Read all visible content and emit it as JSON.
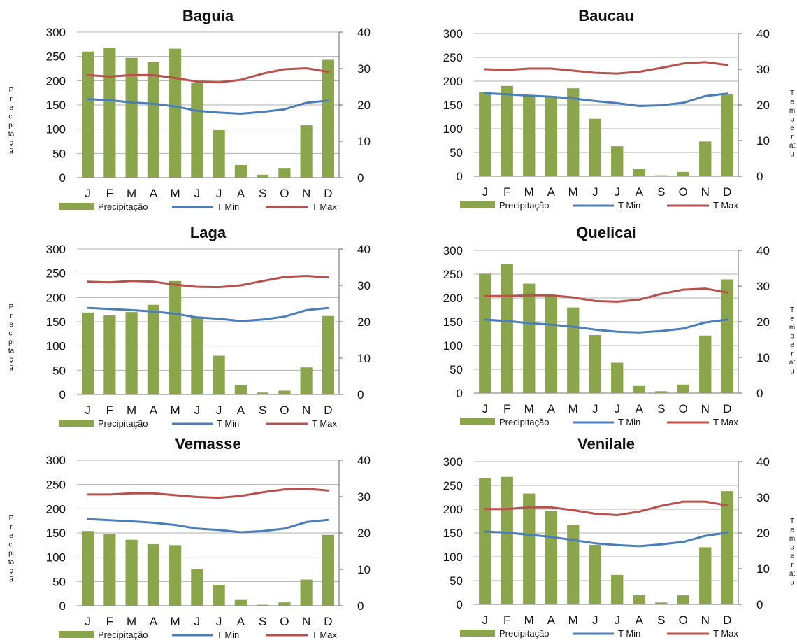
{
  "chart_data": [
    {
      "type": "bar",
      "title": "Baguia",
      "categories": [
        "J",
        "F",
        "M",
        "A",
        "M",
        "J",
        "J",
        "A",
        "S",
        "O",
        "N",
        "D"
      ],
      "ylim": [
        0,
        300
      ],
      "y2lim": [
        0,
        40
      ],
      "yticks": [
        "0",
        "50",
        "100",
        "150",
        "200",
        "250",
        "300"
      ],
      "y2ticks": [
        "0",
        "10",
        "20",
        "30",
        "40"
      ],
      "ylabel": "Precipitaçã",
      "y2label": "",
      "legend": [
        "Precipitação",
        "T Min",
        "T Max"
      ],
      "series": [
        {
          "name": "Precipitação",
          "type": "bar",
          "axis": "left",
          "values": [
            260,
            268,
            247,
            239,
            266,
            195,
            98,
            26,
            6,
            20,
            108,
            243
          ]
        },
        {
          "name": "T Min",
          "type": "line",
          "axis": "right",
          "values": [
            21.6,
            21.3,
            20.7,
            20.3,
            19.6,
            18.4,
            17.9,
            17.6,
            18.1,
            18.8,
            20.6,
            21.2
          ]
        },
        {
          "name": "T Max",
          "type": "line",
          "axis": "right",
          "values": [
            28.2,
            27.8,
            28.2,
            28.2,
            27.4,
            26.4,
            26.2,
            26.9,
            28.6,
            29.8,
            30.1,
            29.1
          ]
        }
      ]
    },
    {
      "type": "bar",
      "title": "Baucau",
      "categories": [
        "J",
        "F",
        "M",
        "A",
        "M",
        "J",
        "J",
        "A",
        "S",
        "O",
        "N",
        "D"
      ],
      "ylim": [
        0,
        300
      ],
      "y2lim": [
        0,
        40
      ],
      "yticks": [
        "0",
        "50",
        "100",
        "150",
        "200",
        "250",
        "300"
      ],
      "y2ticks": [
        "0",
        "10",
        "20",
        "30",
        "40"
      ],
      "ylabel": "",
      "y2label": "Temperatu",
      "legend": [
        "Precipitação",
        "T Min",
        "T Max"
      ],
      "series": [
        {
          "name": "Precipitação",
          "type": "bar",
          "axis": "left",
          "values": [
            178,
            190,
            170,
            168,
            185,
            121,
            63,
            16,
            2,
            9,
            73,
            173
          ]
        },
        {
          "name": "T Min",
          "type": "line",
          "axis": "right",
          "values": [
            23.3,
            23.0,
            22.6,
            22.3,
            21.8,
            21.1,
            20.5,
            19.7,
            19.9,
            20.6,
            22.5,
            23.2
          ]
        },
        {
          "name": "T Max",
          "type": "line",
          "axis": "right",
          "values": [
            30.0,
            29.8,
            30.2,
            30.2,
            29.6,
            29.0,
            28.8,
            29.3,
            30.4,
            31.6,
            32.0,
            31.2
          ]
        }
      ]
    },
    {
      "type": "bar",
      "title": "Laga",
      "categories": [
        "J",
        "F",
        "M",
        "A",
        "M",
        "J",
        "J",
        "A",
        "S",
        "O",
        "N",
        "D"
      ],
      "ylim": [
        0,
        300
      ],
      "y2lim": [
        0,
        40
      ],
      "yticks": [
        "0",
        "50",
        "100",
        "150",
        "200",
        "250",
        "300"
      ],
      "y2ticks": [
        "0",
        "10",
        "20",
        "30",
        "40"
      ],
      "ylabel": "Precipitaçã",
      "y2label": "",
      "legend": [
        "Precipitação",
        "T Min",
        "T Max"
      ],
      "series": [
        {
          "name": "Precipitação",
          "type": "bar",
          "axis": "left",
          "values": [
            169,
            163,
            170,
            185,
            234,
            160,
            80,
            19,
            4,
            8,
            56,
            162
          ]
        },
        {
          "name": "T Min",
          "type": "line",
          "axis": "right",
          "values": [
            23.8,
            23.5,
            23.2,
            22.8,
            22.2,
            21.2,
            20.8,
            20.2,
            20.6,
            21.4,
            23.2,
            23.8
          ]
        },
        {
          "name": "T Max",
          "type": "line",
          "axis": "right",
          "values": [
            31.0,
            30.8,
            31.2,
            31.0,
            30.2,
            29.6,
            29.5,
            30.0,
            31.2,
            32.3,
            32.6,
            32.2
          ]
        }
      ]
    },
    {
      "type": "bar",
      "title": "Quelicai",
      "categories": [
        "J",
        "F",
        "M",
        "A",
        "M",
        "J",
        "J",
        "A",
        "S",
        "O",
        "N",
        "D"
      ],
      "ylim": [
        0,
        300
      ],
      "y2lim": [
        0,
        40
      ],
      "yticks": [
        "0",
        "50",
        "100",
        "150",
        "200",
        "250",
        "300"
      ],
      "y2ticks": [
        "0",
        "10",
        "20",
        "30",
        "40"
      ],
      "ylabel": "",
      "y2label": "Temperatu",
      "legend": [
        "Precipitação",
        "T Min",
        "T Max"
      ],
      "series": [
        {
          "name": "Precipitação",
          "type": "bar",
          "axis": "left",
          "values": [
            251,
            271,
            230,
            205,
            180,
            122,
            64,
            15,
            4,
            18,
            121,
            239
          ]
        },
        {
          "name": "T Min",
          "type": "line",
          "axis": "right",
          "values": [
            20.6,
            20.2,
            19.6,
            19.2,
            18.6,
            17.8,
            17.2,
            17.0,
            17.4,
            18.1,
            19.8,
            20.6
          ]
        },
        {
          "name": "T Max",
          "type": "line",
          "axis": "right",
          "values": [
            27.2,
            27.2,
            27.4,
            27.4,
            26.8,
            25.8,
            25.6,
            26.2,
            27.8,
            29.0,
            29.3,
            28.2
          ]
        }
      ]
    },
    {
      "type": "bar",
      "title": "Vemasse",
      "categories": [
        "J",
        "F",
        "M",
        "A",
        "M",
        "J",
        "J",
        "A",
        "S",
        "O",
        "N",
        "D"
      ],
      "ylim": [
        0,
        300
      ],
      "y2lim": [
        0,
        40
      ],
      "yticks": [
        "0",
        "50",
        "100",
        "150",
        "200",
        "250",
        "300"
      ],
      "y2ticks": [
        "0",
        "10",
        "20",
        "30",
        "40"
      ],
      "ylabel": "Precipitaçã",
      "y2label": "",
      "legend": [
        "Precipitação",
        "T Min",
        "T Max"
      ],
      "series": [
        {
          "name": "Precipitação",
          "type": "bar",
          "axis": "left",
          "values": [
            154,
            148,
            136,
            127,
            125,
            75,
            43,
            12,
            2,
            7,
            54,
            146
          ]
        },
        {
          "name": "T Min",
          "type": "line",
          "axis": "right",
          "values": [
            23.8,
            23.5,
            23.2,
            22.8,
            22.2,
            21.2,
            20.8,
            20.2,
            20.5,
            21.2,
            23.0,
            23.6
          ]
        },
        {
          "name": "T Max",
          "type": "line",
          "axis": "right",
          "values": [
            30.6,
            30.6,
            30.9,
            30.9,
            30.4,
            29.9,
            29.7,
            30.2,
            31.2,
            32.0,
            32.2,
            31.7
          ]
        }
      ]
    },
    {
      "type": "bar",
      "title": "Venilale",
      "categories": [
        "J",
        "F",
        "M",
        "A",
        "M",
        "J",
        "J",
        "A",
        "S",
        "O",
        "N",
        "D"
      ],
      "ylim": [
        0,
        300
      ],
      "y2lim": [
        0,
        40
      ],
      "yticks": [
        "0",
        "50",
        "100",
        "150",
        "200",
        "250",
        "300"
      ],
      "y2ticks": [
        "0",
        "10",
        "20",
        "30",
        "40"
      ],
      "ylabel": "",
      "y2label": "Temperatu",
      "legend": [
        "Precipitação",
        "T Min",
        "T Max"
      ],
      "series": [
        {
          "name": "Precipitação",
          "type": "bar",
          "axis": "left",
          "values": [
            265,
            268,
            233,
            196,
            167,
            125,
            62,
            19,
            4,
            19,
            120,
            238
          ]
        },
        {
          "name": "T Min",
          "type": "line",
          "axis": "right",
          "values": [
            20.4,
            20.1,
            19.5,
            18.9,
            18.0,
            17.1,
            16.6,
            16.3,
            16.8,
            17.5,
            19.2,
            20.1
          ]
        },
        {
          "name": "T Max",
          "type": "line",
          "axis": "right",
          "values": [
            26.7,
            26.7,
            27.2,
            27.2,
            26.4,
            25.4,
            25.0,
            26.0,
            27.6,
            28.8,
            28.8,
            27.7
          ]
        }
      ]
    }
  ],
  "colors": {
    "precipitation": "#8ba54a",
    "tmin": "#4a7ebb",
    "tmax": "#b8504c",
    "axis": "#888888",
    "text": "#111111"
  }
}
